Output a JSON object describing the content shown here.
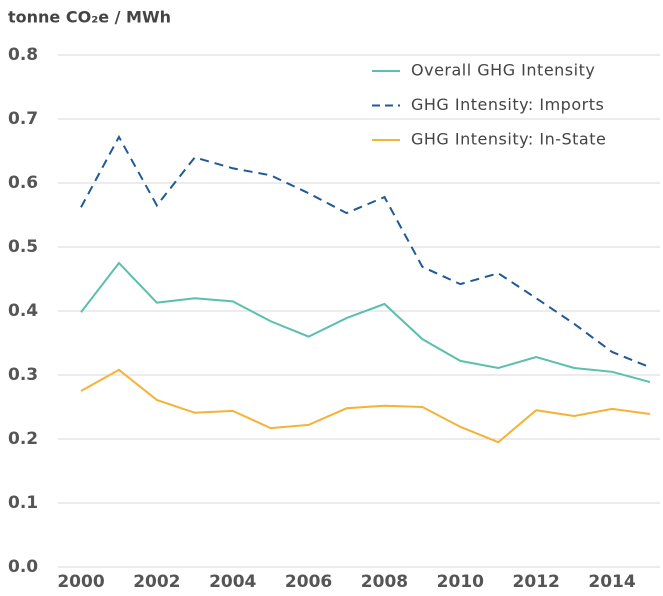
{
  "chart_data": {
    "type": "line",
    "ylabel": "tonne CO₂e / MWh",
    "x": [
      2000,
      2001,
      2002,
      2003,
      2004,
      2005,
      2006,
      2007,
      2008,
      2009,
      2010,
      2011,
      2012,
      2013,
      2014,
      2015
    ],
    "series": [
      {
        "name": "Overall GHG Intensity",
        "color": "#5bbfad",
        "dash": false,
        "values": [
          0.398,
          0.475,
          0.413,
          0.42,
          0.415,
          0.384,
          0.36,
          0.389,
          0.411,
          0.356,
          0.322,
          0.311,
          0.328,
          0.311,
          0.305,
          0.289
        ]
      },
      {
        "name": "GHG Intensity: Imports",
        "color": "#1f5a96",
        "dash": true,
        "values": [
          0.562,
          0.672,
          0.565,
          0.64,
          0.623,
          0.612,
          0.584,
          0.553,
          0.578,
          0.469,
          0.442,
          0.459,
          0.42,
          0.38,
          0.336,
          0.312
        ]
      },
      {
        "name": "GHG Intensity: In-State",
        "color": "#f5b335",
        "dash": false,
        "values": [
          0.275,
          0.308,
          0.261,
          0.241,
          0.244,
          0.217,
          0.222,
          0.248,
          0.252,
          0.25,
          0.219,
          0.195,
          0.245,
          0.236,
          0.247,
          0.239
        ]
      }
    ],
    "xlim": [
      2000,
      2015
    ],
    "xticks": [
      2000,
      2002,
      2004,
      2006,
      2008,
      2010,
      2012,
      2014
    ],
    "ylim": [
      0,
      0.8
    ],
    "yticks": [
      {
        "value": 0,
        "label": "0.0"
      },
      0.1,
      0.2,
      0.3,
      0.4,
      0.5,
      0.6,
      0.7,
      0.8
    ],
    "grid": true,
    "legend": "top-right"
  }
}
